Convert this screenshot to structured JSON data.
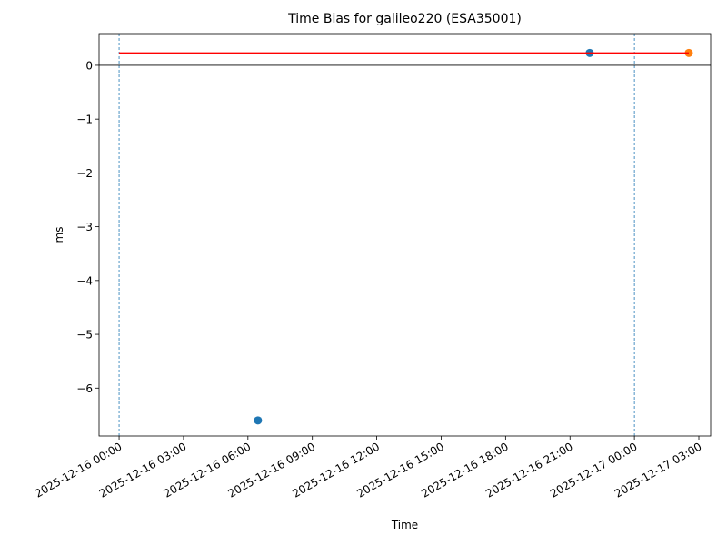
{
  "chart_data": {
    "type": "scatter",
    "title": "Time Bias for galileo220 (ESA35001)",
    "x_label": "Time",
    "y_label": "ms",
    "xlim": [
      "2025-12-15 23:04",
      "2025-12-17 03:33"
    ],
    "xticks": [
      "2025-12-16 00:00",
      "2025-12-16 03:00",
      "2025-12-16 06:00",
      "2025-12-16 09:00",
      "2025-12-16 12:00",
      "2025-12-16 15:00",
      "2025-12-16 18:00",
      "2025-12-16 21:00",
      "2025-12-17 00:00",
      "2025-12-17 03:00"
    ],
    "ylim": [
      -6.89,
      0.59
    ],
    "yticks": [
      0,
      {
        "value": -1,
        "label": "−1"
      },
      {
        "value": -2,
        "label": "−2"
      },
      {
        "value": -3,
        "label": "−3"
      },
      {
        "value": -4,
        "label": "−4"
      },
      {
        "value": -5,
        "label": "−5"
      },
      {
        "value": -6,
        "label": "−6"
      }
    ],
    "hlines": [
      0
    ],
    "vlines": [
      "2025-12-16 00:00",
      "2025-12-17 00:00"
    ],
    "series": [
      {
        "type": "scatter",
        "color": "#1f77b4",
        "x": [
          "2025-12-16 06:28",
          "2025-12-16 21:55"
        ],
        "values": [
          -6.6,
          0.23
        ]
      },
      {
        "type": "scatter",
        "color": "#ff7f0e",
        "x": [
          "2025-12-17 02:32"
        ],
        "values": [
          0.23
        ]
      },
      {
        "type": "line",
        "color": "#ff0000",
        "x": [
          "2025-12-16 00:00",
          "2025-12-17 02:32"
        ],
        "values": [
          0.23,
          0.23
        ]
      }
    ]
  }
}
